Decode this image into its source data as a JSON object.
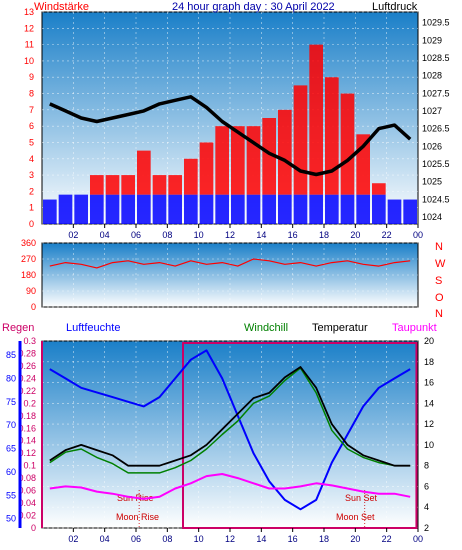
{
  "header": {
    "left_label": "Windstärke",
    "title": "24 hour graph day : 30 April 2022",
    "right_label": "Luftdruck"
  },
  "panel2": {
    "compass": [
      "N",
      "W",
      "S",
      "O",
      "N"
    ]
  },
  "panel3": {
    "legend": {
      "regen": "Regen",
      "luftfeuchte": "Luftfeuchte",
      "windchill": "Windchill",
      "temperatur": "Temperatur",
      "taupunkt": "Taupunkt"
    },
    "annotations": {
      "sun_rise": "Sun Rise",
      "moon_rise": "Moon Rise",
      "sun_set": "Sun Set",
      "moon_set": "Moon Set"
    }
  },
  "colors": {
    "wind": "#ff0000",
    "gust_blue": "#0000ff",
    "pressure": "#000000",
    "humidity": "#0000ff",
    "temperature": "#000000",
    "windchill": "#008000",
    "dewpoint": "#ff00ff",
    "rain": "#cc0066",
    "sky_top": "#1a7fc8",
    "sky_bottom": "#ffffff"
  },
  "chart_data": [
    {
      "type": "bar",
      "title": "24 hour graph day : 30 April 2022",
      "left_axis_label": "Windstärke",
      "right_axis_label": "Luftdruck",
      "x_ticks": [
        "02",
        "04",
        "06",
        "08",
        "10",
        "12",
        "14",
        "16",
        "18",
        "20",
        "22",
        "00"
      ],
      "left_ticks": [
        "0",
        "1",
        "2",
        "3",
        "4",
        "5",
        "6",
        "7",
        "8",
        "9",
        "10",
        "11",
        "12",
        "13"
      ],
      "left_ylim": [
        0,
        13
      ],
      "right_ticks": [
        "1024",
        "1024.5",
        "1025",
        "1025.5",
        "1026",
        "1026.5",
        "1027",
        "1027.5",
        "1028",
        "1028.5",
        "1029",
        "1029.5"
      ],
      "right_ylim": [
        1023.8,
        1029.8
      ],
      "hours": [
        0.5,
        1.5,
        2.5,
        3.5,
        4.5,
        5.5,
        6.5,
        7.5,
        8.5,
        9.5,
        10.5,
        11.5,
        12.5,
        13.5,
        14.5,
        15.5,
        16.5,
        17.5,
        18.5,
        19.5,
        20.5,
        21.5,
        22.5,
        23.5
      ],
      "series": [
        {
          "name": "Windstärke",
          "values": [
            1.5,
            1.8,
            1.8,
            3,
            3,
            3,
            4.5,
            3,
            3,
            4,
            5,
            6,
            6,
            6,
            6.5,
            7,
            8.5,
            11,
            9,
            8,
            5.5,
            2.5,
            1.5,
            1.5
          ]
        },
        {
          "name": "Luftdruck",
          "values": [
            1027.2,
            1027.0,
            1026.8,
            1026.7,
            1026.8,
            1026.9,
            1027.0,
            1027.2,
            1027.3,
            1027.4,
            1027.1,
            1026.7,
            1026.4,
            1026.1,
            1025.8,
            1025.6,
            1025.3,
            1025.2,
            1025.3,
            1025.6,
            1026.0,
            1026.5,
            1026.6,
            1026.2
          ]
        }
      ]
    },
    {
      "type": "line",
      "y_ticks": [
        "0",
        "90",
        "180",
        "270",
        "360"
      ],
      "ylim": [
        0,
        360
      ],
      "hours": [
        0.5,
        1.5,
        2.5,
        3.5,
        4.5,
        5.5,
        6.5,
        7.5,
        8.5,
        9.5,
        10.5,
        11.5,
        12.5,
        13.5,
        14.5,
        15.5,
        16.5,
        17.5,
        18.5,
        19.5,
        20.5,
        21.5,
        22.5,
        23.5
      ],
      "series": [
        {
          "values": [
            230,
            250,
            240,
            220,
            250,
            260,
            240,
            250,
            230,
            260,
            240,
            250,
            230,
            270,
            260,
            240,
            250,
            230,
            250,
            260,
            240,
            230,
            250,
            260
          ]
        }
      ]
    },
    {
      "type": "line",
      "legend": [
        "Regen",
        "Luftfeuchte",
        "Windchill",
        "Temperatur",
        "Taupunkt"
      ],
      "rain_ticks": [
        "0",
        "0.02",
        "0.04",
        "0.06",
        "0.08",
        "0.1",
        "0.12",
        "0.14",
        "0.16",
        "0.18",
        "0.2",
        "0.22",
        "0.24",
        "0.26",
        "0.28",
        "0.3"
      ],
      "rain_ylim": [
        0,
        0.3
      ],
      "humidity_ticks": [
        "50",
        "55",
        "60",
        "65",
        "70",
        "75",
        "80",
        "85"
      ],
      "humidity_ylim": [
        48,
        88
      ],
      "temp_ticks": [
        "2",
        "4",
        "6",
        "8",
        "10",
        "12",
        "14",
        "16",
        "18",
        "20"
      ],
      "temp_ylim": [
        2,
        20
      ],
      "hours": [
        0.5,
        1.5,
        2.5,
        3.5,
        4.5,
        5.5,
        6.5,
        7.5,
        8.5,
        9.5,
        10.5,
        11.5,
        12.5,
        13.5,
        14.5,
        15.5,
        16.5,
        17.5,
        18.5,
        19.5,
        20.5,
        21.5,
        22.5,
        23.5
      ],
      "series": [
        {
          "name": "Luftfeuchte",
          "values": [
            82,
            80,
            78,
            77,
            76,
            75,
            74,
            76,
            80,
            84,
            86,
            80,
            72,
            64,
            58,
            54,
            52,
            54,
            62,
            68,
            74,
            78,
            80,
            82
          ]
        },
        {
          "name": "Temperatur",
          "values": [
            8.5,
            9.5,
            10,
            9.5,
            9,
            8,
            8,
            8,
            8.5,
            9,
            10,
            11.5,
            13,
            14.5,
            15,
            16.5,
            17.5,
            15.5,
            12,
            10,
            9,
            8.5,
            8,
            8
          ]
        },
        {
          "name": "Windchill",
          "values": [
            8.3,
            9.3,
            9.6,
            8.8,
            8.2,
            7.3,
            7.3,
            7.3,
            7.8,
            8.5,
            9.6,
            11,
            12.3,
            14,
            14.7,
            16.2,
            17.4,
            15,
            11.4,
            9.6,
            8.8,
            8.3,
            8,
            8
          ]
        },
        {
          "name": "Taupunkt",
          "values": [
            5.8,
            6,
            5.9,
            5.5,
            5.3,
            5,
            4.8,
            5,
            5.8,
            6.3,
            7,
            7.2,
            6.8,
            6.3,
            5.8,
            5.8,
            6,
            6.3,
            6.1,
            5.8,
            5.5,
            5.3,
            5.3,
            5
          ]
        },
        {
          "name": "Regen",
          "values": [
            0,
            0,
            0,
            0,
            0,
            0,
            0,
            0,
            0,
            0,
            0,
            0,
            0,
            0,
            0,
            0,
            0,
            0,
            0,
            0,
            0,
            0,
            0,
            0
          ]
        }
      ]
    }
  ]
}
